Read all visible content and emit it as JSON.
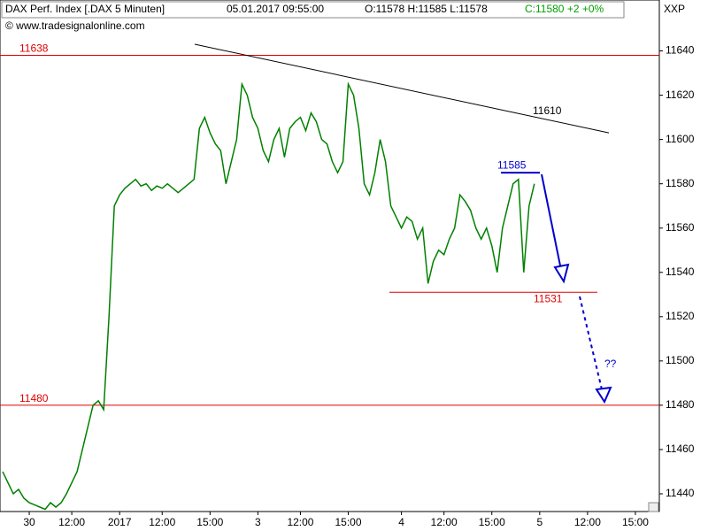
{
  "chart_data": {
    "type": "line",
    "title": "DAX Perf. Index [.DAX  5 Minuten]",
    "timestamp": "05.01.2017 09:55:00",
    "ohl": "O:11578 H:11585 L:11578",
    "close_info": "C:11580 +2 +0%",
    "copyright": "© www.tradesignalonline.com",
    "axis_name": "XXP",
    "categories": [
      null,
      null,
      null,
      null,
      null,
      "30",
      null,
      null,
      null,
      null,
      null,
      null,
      null,
      "12:00",
      null,
      null,
      null,
      null,
      null,
      null,
      null,
      null,
      "2017",
      null,
      null,
      null,
      null,
      null,
      null,
      null,
      "12:00",
      null,
      null,
      null,
      null,
      null,
      null,
      null,
      null,
      "15:00",
      null,
      null,
      null,
      null,
      null,
      null,
      null,
      null,
      "3",
      null,
      null,
      null,
      null,
      null,
      null,
      null,
      "12:00",
      null,
      null,
      null,
      null,
      null,
      null,
      null,
      null,
      "15:00",
      null,
      null,
      null,
      null,
      null,
      null,
      null,
      null,
      null,
      "4",
      null,
      null,
      null,
      null,
      null,
      null,
      null,
      "12:00",
      null,
      null,
      null,
      null,
      null,
      null,
      null,
      null,
      "15:00",
      null,
      null,
      null,
      null,
      null,
      null,
      null,
      null,
      "5",
      null,
      null,
      null,
      null,
      null,
      null,
      null,
      null,
      "12:00",
      null,
      null,
      null,
      null,
      null,
      null,
      null,
      null,
      "15:00",
      null,
      null,
      null,
      null
    ],
    "series": [
      {
        "name": "DAX",
        "color": "#008000",
        "values": [
          11450,
          11445,
          11440,
          11442,
          11438,
          11436,
          11435,
          11434,
          11433,
          11436,
          11434,
          11436,
          11440,
          11445,
          11450,
          11460,
          11470,
          11480,
          11482,
          11478,
          11520,
          11570,
          11575,
          11578,
          11580,
          11582,
          11579,
          11580,
          11577,
          11579,
          11578,
          11580,
          11578,
          11576,
          11578,
          11580,
          11582,
          11605,
          11610,
          11603,
          11598,
          11595,
          11580,
          11590,
          11600,
          11625,
          11620,
          11610,
          11605,
          11595,
          11590,
          11600,
          11605,
          11592,
          11605,
          11608,
          11610,
          11604,
          11612,
          11608,
          11600,
          11598,
          11590,
          11585,
          11590,
          11625,
          11620,
          11605,
          11580,
          11575,
          11585,
          11600,
          11590,
          11570,
          11565,
          11560,
          11565,
          11563,
          11555,
          11560,
          11535,
          11545,
          11550,
          11548,
          11555,
          11560,
          11575,
          11572,
          11568,
          11560,
          11555,
          11560,
          11552,
          11540,
          11560,
          11570,
          11580,
          11582,
          11540,
          11570,
          11580,
          null,
          null,
          null,
          null,
          null,
          null,
          null,
          null,
          null,
          null,
          null,
          null,
          null,
          null,
          null,
          null,
          null,
          null,
          null,
          null,
          null,
          null,
          null
        ]
      }
    ],
    "ylim": [
      11432,
      11655
    ],
    "yticks": [
      11440,
      11460,
      11480,
      11500,
      11520,
      11540,
      11560,
      11580,
      11600,
      11620,
      11640
    ],
    "grid": false,
    "levels": [
      11638,
      11480
    ],
    "level_color": "#e00000",
    "support": 11531,
    "resistance": 11585,
    "resistance_color": "#0000cc",
    "trendline": {
      "label": "11610",
      "start": 11643,
      "end": 11603
    },
    "question": "??"
  }
}
